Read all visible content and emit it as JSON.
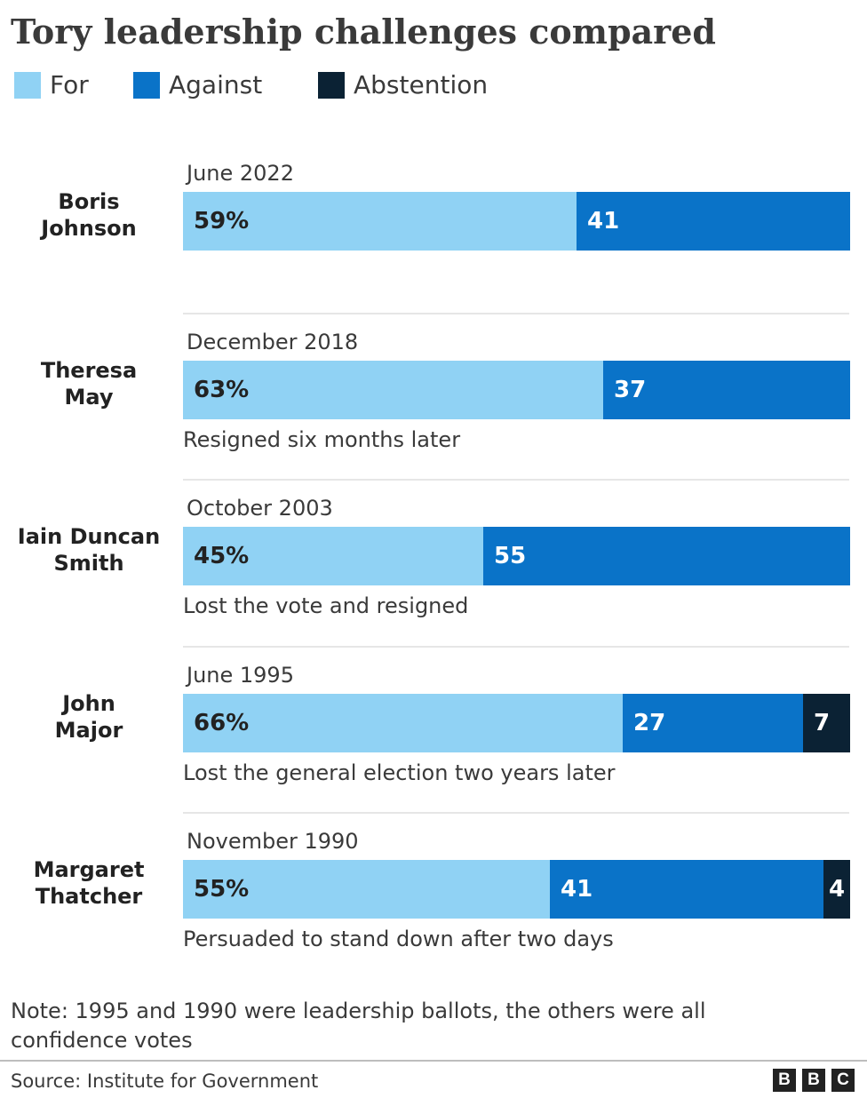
{
  "title": "Tory leadership challenges compared",
  "legend": [
    {
      "label": "For",
      "color": "#90d2f4"
    },
    {
      "label": "Against",
      "color": "#0a73c8"
    },
    {
      "label": "Abstention",
      "color": "#0b2234"
    }
  ],
  "chart_data": {
    "type": "bar",
    "orientation": "horizontal",
    "stacked": true,
    "value_unit": "%",
    "categories": [
      "Boris Johnson",
      "Theresa May",
      "Iain Duncan Smith",
      "John Major",
      "Margaret Thatcher"
    ],
    "rows": [
      {
        "leader": "Boris\nJohnson",
        "date": "June 2022",
        "for_label": "59%",
        "against_label": "41",
        "abstention_label": "",
        "note": ""
      },
      {
        "leader": "Theresa\nMay",
        "date": "December 2018",
        "for_label": "63%",
        "against_label": "37",
        "abstention_label": "",
        "note": "Resigned six months later"
      },
      {
        "leader": "Iain Duncan\nSmith",
        "date": "October 2003",
        "for_label": "45%",
        "against_label": "55",
        "abstention_label": "",
        "note": "Lost the vote and resigned"
      },
      {
        "leader": "John\nMajor",
        "date": "June 1995",
        "for_label": "66%",
        "against_label": "27",
        "abstention_label": "7",
        "note": "Lost the general election two years later"
      },
      {
        "leader": "Margaret\nThatcher",
        "date": "November 1990",
        "for_label": "55%",
        "against_label": "41",
        "abstention_label": "4",
        "note": "Persuaded to stand down after two days"
      }
    ],
    "series": [
      {
        "name": "For",
        "values": [
          59,
          63,
          45,
          66,
          55
        ]
      },
      {
        "name": "Against",
        "values": [
          41,
          37,
          55,
          27,
          41
        ]
      },
      {
        "name": "Abstention",
        "values": [
          0,
          0,
          0,
          7,
          4
        ]
      }
    ],
    "xlim": [
      0,
      100
    ],
    "grid": false,
    "legend_position": "top-left"
  },
  "footnote": "Note: 1995 and 1990 were leadership ballots, the others were all confidence votes",
  "source": "Source: Institute for Government",
  "brand": [
    "B",
    "B",
    "C"
  ]
}
